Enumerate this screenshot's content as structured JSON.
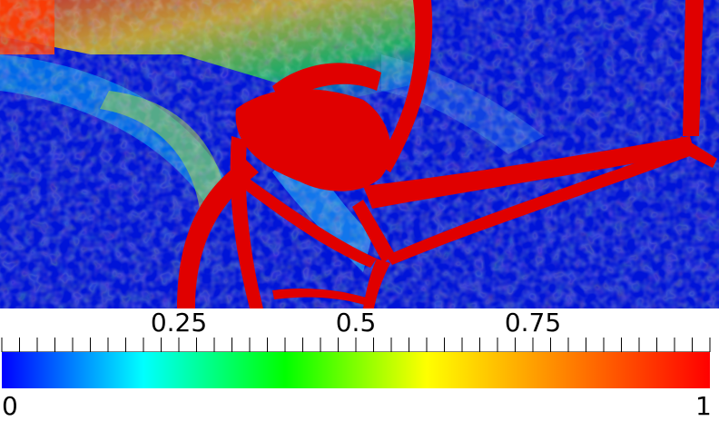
{
  "chart_data": {
    "type": "heatmap",
    "title": "",
    "colormap": {
      "name": "rainbow",
      "stops": [
        "#0000ff",
        "#00ffff",
        "#00ff00",
        "#ffff00",
        "#ff8000",
        "#ff0000"
      ]
    },
    "scale_min": 0,
    "scale_max": 1,
    "major_ticks": [
      0.25,
      0.5,
      0.75
    ],
    "major_tick_labels": [
      "0.25",
      "0.5",
      "0.75"
    ],
    "min_label": "0",
    "max_label": "1",
    "minor_tick_step": 0.025,
    "background_value": 0,
    "field_value": 1
  }
}
